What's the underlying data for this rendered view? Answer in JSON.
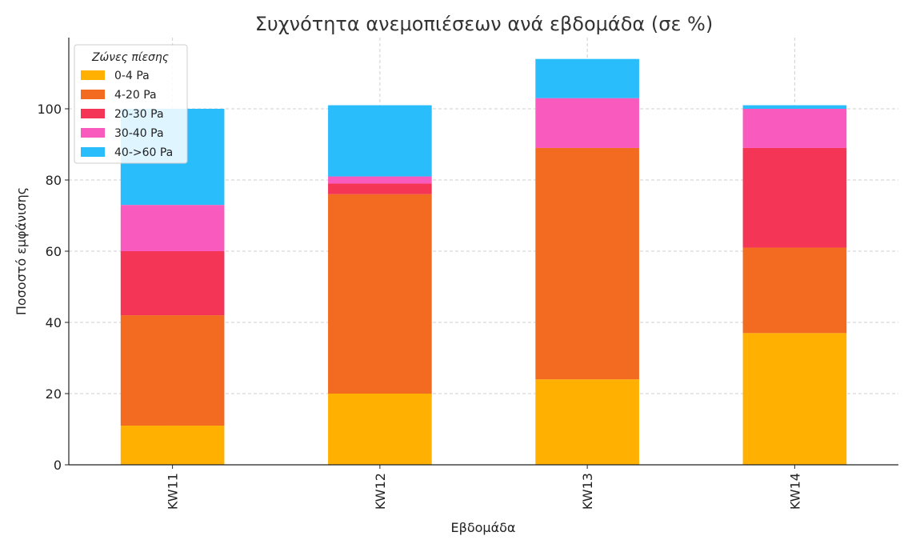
{
  "chart_data": {
    "type": "bar",
    "stacked": true,
    "title": "Συχνότητα ανεμοπιέσεων ανά εβδομάδα (σε %)",
    "xlabel": "Εβδομάδα",
    "ylabel": "Ποσοστό εμφάνισης",
    "categories": [
      "KW11",
      "KW12",
      "KW13",
      "KW14"
    ],
    "ylim": [
      0,
      120
    ],
    "yticks": [
      0,
      20,
      40,
      60,
      80,
      100
    ],
    "grid": true,
    "legend": {
      "title": "Ζώνες πίεσης",
      "placement": "top-left"
    },
    "series": [
      {
        "name": "0-4 Pa",
        "color": "#FFB000",
        "values": [
          11,
          20,
          24,
          37
        ]
      },
      {
        "name": "4-20 Pa",
        "color": "#F26B21",
        "values": [
          31,
          56,
          65,
          24
        ]
      },
      {
        "name": "20-30 Pa",
        "color": "#F43556",
        "values": [
          18,
          3,
          0,
          28
        ]
      },
      {
        "name": "30-40 Pa",
        "color": "#F85ABD",
        "values": [
          13,
          2,
          14,
          11
        ]
      },
      {
        "name": "40->60 Pa",
        "color": "#2ABDFB",
        "values": [
          27,
          20,
          11,
          1
        ]
      }
    ]
  }
}
